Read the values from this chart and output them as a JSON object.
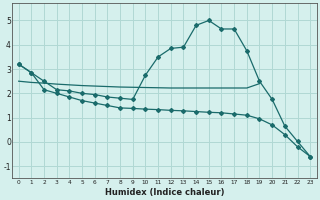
{
  "xlabel": "Humidex (Indice chaleur)",
  "bg_color": "#d5f0ed",
  "grid_color": "#b0d8d4",
  "line_color": "#1a6b6b",
  "xlim": [
    -0.5,
    23.5
  ],
  "ylim": [
    -1.5,
    5.7
  ],
  "yticks": [
    -1,
    0,
    1,
    2,
    3,
    4,
    5
  ],
  "xticks": [
    0,
    1,
    2,
    3,
    4,
    5,
    6,
    7,
    8,
    9,
    10,
    11,
    12,
    13,
    14,
    15,
    16,
    17,
    18,
    19,
    20,
    21,
    22,
    23
  ],
  "curve_x": [
    0,
    1,
    2,
    3,
    4,
    5,
    6,
    7,
    8,
    9,
    10,
    11,
    12,
    13,
    14,
    15,
    16,
    17,
    18,
    19,
    20,
    21,
    22,
    23
  ],
  "curve_y": [
    3.2,
    2.85,
    2.5,
    2.15,
    2.1,
    2.0,
    1.95,
    1.85,
    1.8,
    1.75,
    2.75,
    3.5,
    3.85,
    3.9,
    4.8,
    5.0,
    4.65,
    4.65,
    3.75,
    2.5,
    1.75,
    0.65,
    0.02,
    -0.6
  ],
  "flat_x": [
    0,
    1,
    2,
    3,
    4,
    5,
    6,
    7,
    8,
    9,
    10,
    11,
    12,
    13,
    14,
    15,
    16,
    17,
    18,
    19
  ],
  "flat_y": [
    2.5,
    2.45,
    2.42,
    2.38,
    2.35,
    2.32,
    2.3,
    2.28,
    2.26,
    2.25,
    2.24,
    2.23,
    2.22,
    2.22,
    2.22,
    2.22,
    2.22,
    2.22,
    2.22,
    2.4
  ],
  "diag_x": [
    0,
    1,
    2,
    3,
    4,
    5,
    6,
    7,
    8,
    9,
    10,
    11,
    12,
    13,
    14,
    15,
    16,
    17,
    18,
    19,
    20,
    21,
    22,
    23
  ],
  "diag_y": [
    3.2,
    2.85,
    2.15,
    2.0,
    1.85,
    1.7,
    1.6,
    1.5,
    1.4,
    1.38,
    1.35,
    1.33,
    1.3,
    1.28,
    1.25,
    1.22,
    1.2,
    1.15,
    1.1,
    0.95,
    0.7,
    0.3,
    -0.2,
    -0.6
  ],
  "marker": "D",
  "markersize": 2.0,
  "linewidth": 0.9
}
